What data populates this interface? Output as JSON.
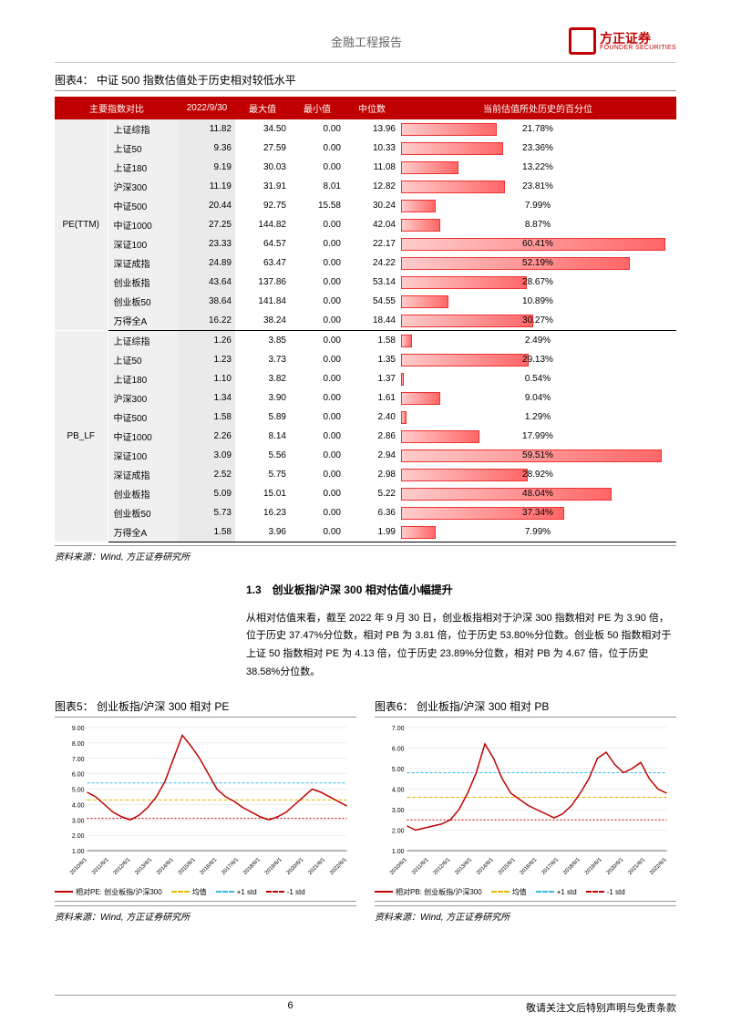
{
  "header": {
    "title": "金融工程报告",
    "logo_cn": "方正证券",
    "logo_en": "FOUNDER SECURITIES"
  },
  "table": {
    "caption_label": "图表4：",
    "caption": "中证 500 指数估值处于历史相对较低水平",
    "columns": [
      "主要指数对比",
      "2022/9/30",
      "最大值",
      "最小值",
      "中位数",
      "当前估值所处历史的百分位"
    ],
    "groups": [
      {
        "name": "PE(TTM)",
        "rows": [
          {
            "name": "上证综指",
            "v": "11.82",
            "max": "34.50",
            "min": "0.00",
            "med": "13.96",
            "pct": "21.78%",
            "pct_val": 21.78
          },
          {
            "name": "上证50",
            "v": "9.36",
            "max": "27.59",
            "min": "0.00",
            "med": "10.33",
            "pct": "23.36%",
            "pct_val": 23.36
          },
          {
            "name": "上证180",
            "v": "9.19",
            "max": "30.03",
            "min": "0.00",
            "med": "11.08",
            "pct": "13.22%",
            "pct_val": 13.22
          },
          {
            "name": "沪深300",
            "v": "11.19",
            "max": "31.91",
            "min": "8.01",
            "med": "12.82",
            "pct": "23.81%",
            "pct_val": 23.81
          },
          {
            "name": "中证500",
            "v": "20.44",
            "max": "92.75",
            "min": "15.58",
            "med": "30.24",
            "pct": "7.99%",
            "pct_val": 7.99
          },
          {
            "name": "中证1000",
            "v": "27.25",
            "max": "144.82",
            "min": "0.00",
            "med": "42.04",
            "pct": "8.87%",
            "pct_val": 8.87
          },
          {
            "name": "深证100",
            "v": "23.33",
            "max": "64.57",
            "min": "0.00",
            "med": "22.17",
            "pct": "60.41%",
            "pct_val": 60.41
          },
          {
            "name": "深证成指",
            "v": "24.89",
            "max": "63.47",
            "min": "0.00",
            "med": "24.22",
            "pct": "52.19%",
            "pct_val": 52.19
          },
          {
            "name": "创业板指",
            "v": "43.64",
            "max": "137.86",
            "min": "0.00",
            "med": "53.14",
            "pct": "28.67%",
            "pct_val": 28.67
          },
          {
            "name": "创业板50",
            "v": "38.64",
            "max": "141.84",
            "min": "0.00",
            "med": "54.55",
            "pct": "10.89%",
            "pct_val": 10.89
          },
          {
            "name": "万得全A",
            "v": "16.22",
            "max": "38.24",
            "min": "0.00",
            "med": "18.44",
            "pct": "30.27%",
            "pct_val": 30.27
          }
        ]
      },
      {
        "name": "PB_LF",
        "rows": [
          {
            "name": "上证综指",
            "v": "1.26",
            "max": "3.85",
            "min": "0.00",
            "med": "1.58",
            "pct": "2.49%",
            "pct_val": 2.49
          },
          {
            "name": "上证50",
            "v": "1.23",
            "max": "3.73",
            "min": "0.00",
            "med": "1.35",
            "pct": "29.13%",
            "pct_val": 29.13
          },
          {
            "name": "上证180",
            "v": "1.10",
            "max": "3.82",
            "min": "0.00",
            "med": "1.37",
            "pct": "0.54%",
            "pct_val": 0.54
          },
          {
            "name": "沪深300",
            "v": "1.34",
            "max": "3.90",
            "min": "0.00",
            "med": "1.61",
            "pct": "9.04%",
            "pct_val": 9.04
          },
          {
            "name": "中证500",
            "v": "1.58",
            "max": "5.89",
            "min": "0.00",
            "med": "2.40",
            "pct": "1.29%",
            "pct_val": 1.29
          },
          {
            "name": "中证1000",
            "v": "2.26",
            "max": "8.14",
            "min": "0.00",
            "med": "2.86",
            "pct": "17.99%",
            "pct_val": 17.99
          },
          {
            "name": "深证100",
            "v": "3.09",
            "max": "5.56",
            "min": "0.00",
            "med": "2.94",
            "pct": "59.51%",
            "pct_val": 59.51
          },
          {
            "name": "深证成指",
            "v": "2.52",
            "max": "5.75",
            "min": "0.00",
            "med": "2.98",
            "pct": "28.92%",
            "pct_val": 28.92
          },
          {
            "name": "创业板指",
            "v": "5.09",
            "max": "15.01",
            "min": "0.00",
            "med": "5.22",
            "pct": "48.04%",
            "pct_val": 48.04
          },
          {
            "name": "创业板50",
            "v": "5.73",
            "max": "16.23",
            "min": "0.00",
            "med": "6.36",
            "pct": "37.34%",
            "pct_val": 37.34
          },
          {
            "name": "万得全A",
            "v": "1.58",
            "max": "3.96",
            "min": "0.00",
            "med": "1.99",
            "pct": "7.99%",
            "pct_val": 7.99
          }
        ]
      }
    ],
    "source": "资料来源：Wind, 方正证券研究所"
  },
  "section": {
    "heading": "1.3　创业板指/沪深 300 相对估值小幅提升",
    "para": "从相对估值来看，截至 2022 年 9 月 30 日，创业板指相对于沪深 300 指数相对 PE 为 3.90 倍，位于历史 37.47%分位数，相对 PB 为 3.81 倍，位于历史 53.80%分位数。创业板 50 指数相对于上证 50 指数相对 PE 为 4.13 倍，位于历史 23.89%分位数，相对 PB 为 4.67 倍，位于历史 38.58%分位数。"
  },
  "line_charts": {
    "left": {
      "caption_label": "图表5：",
      "caption": "创业板指/沪深 300 相对 PE",
      "y_ticks": [
        "1.00",
        "2.00",
        "3.00",
        "4.00",
        "5.00",
        "6.00",
        "7.00",
        "8.00",
        "9.00"
      ],
      "ylim": [
        1,
        9
      ],
      "x_labels": [
        "2010/6/1",
        "2011/6/1",
        "2012/6/1",
        "2013/6/1",
        "2014/6/1",
        "2015/6/1",
        "2016/6/1",
        "2017/6/1",
        "2018/6/1",
        "2019/6/1",
        "2020/6/1",
        "2021/6/1",
        "2022/6/1"
      ],
      "series_main": [
        4.8,
        4.5,
        4.0,
        3.5,
        3.2,
        3.0,
        3.3,
        3.8,
        4.5,
        5.5,
        7.0,
        8.5,
        7.8,
        7.0,
        6.0,
        5.0,
        4.5,
        4.2,
        3.8,
        3.5,
        3.2,
        3.0,
        3.2,
        3.5,
        4.0,
        4.5,
        5.0,
        4.8,
        4.5,
        4.2,
        3.9
      ],
      "mean": 4.3,
      "plus_std": 5.4,
      "minus_std": 3.1,
      "legend": [
        "相对PE: 创业板指/沪深300",
        "均值",
        "+1 std",
        "-1 std"
      ],
      "colors": {
        "main": "#c00000",
        "mean": "#e6b800",
        "plus": "#33bbee",
        "minus": "#c00000"
      },
      "source": "资料来源：Wind, 方正证券研究所"
    },
    "right": {
      "caption_label": "图表6：",
      "caption": "创业板指/沪深 300 相对 PB",
      "y_ticks": [
        "1.00",
        "2.00",
        "3.00",
        "4.00",
        "5.00",
        "6.00",
        "7.00"
      ],
      "ylim": [
        1,
        7
      ],
      "x_labels": [
        "2010/6/1",
        "2011/6/1",
        "2012/6/1",
        "2013/6/1",
        "2014/6/1",
        "2015/6/1",
        "2016/6/1",
        "2017/6/1",
        "2018/6/1",
        "2019/6/1",
        "2020/6/1",
        "2021/6/1",
        "2022/6/1"
      ],
      "series_main": [
        2.2,
        2.0,
        2.1,
        2.2,
        2.3,
        2.5,
        3.0,
        3.8,
        4.8,
        6.2,
        5.5,
        4.5,
        3.8,
        3.5,
        3.2,
        3.0,
        2.8,
        2.6,
        2.8,
        3.2,
        3.8,
        4.5,
        5.5,
        5.8,
        5.2,
        4.8,
        5.0,
        5.3,
        4.5,
        4.0,
        3.8
      ],
      "mean": 3.6,
      "plus_std": 4.8,
      "minus_std": 2.5,
      "legend": [
        "相对PB: 创业板指/沪深300",
        "均值",
        "+1 std",
        "-1 std"
      ],
      "colors": {
        "main": "#c00000",
        "mean": "#e6b800",
        "plus": "#33bbee",
        "minus": "#c00000"
      },
      "source": "资料来源：Wind, 方正证券研究所"
    }
  },
  "footer": {
    "page": "6",
    "disclaimer": "敬请关注文后特别声明与免责条款"
  }
}
